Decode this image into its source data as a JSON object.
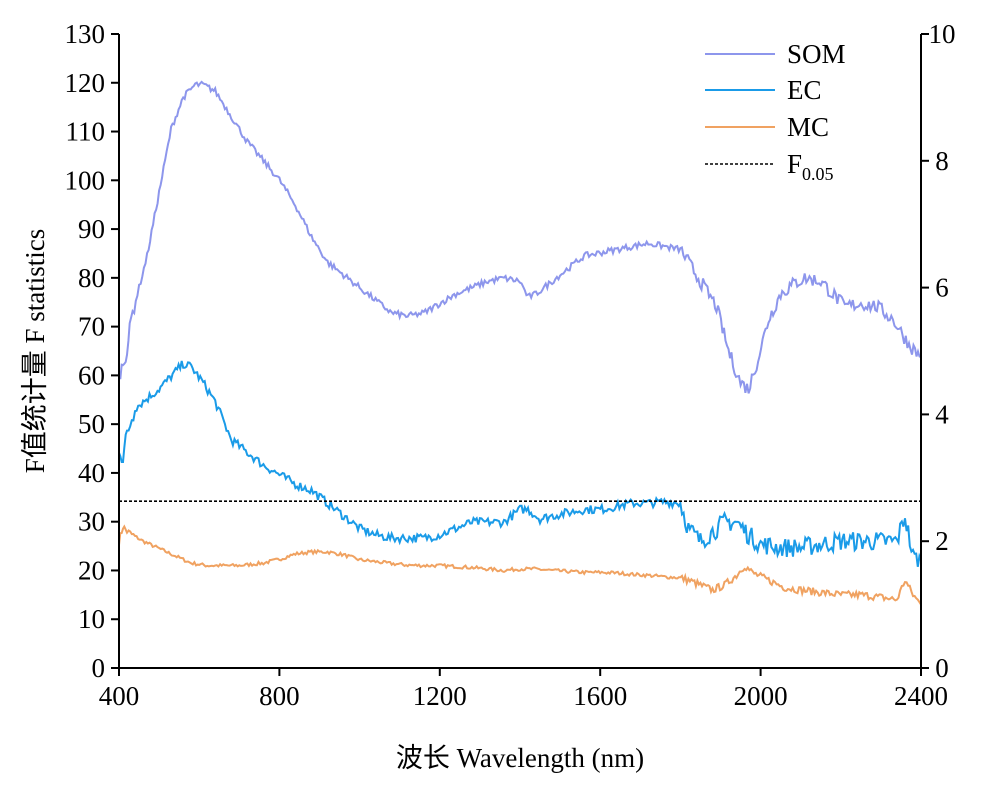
{
  "chart_data": {
    "type": "line",
    "title": "",
    "xlabel": "波长 Wavelength (nm)",
    "ylabel": "F值统计量 F statistics",
    "xlim": [
      400,
      2400
    ],
    "ylim": [
      0,
      130
    ],
    "y2lim": [
      0,
      10
    ],
    "xticks": [
      400,
      800,
      1200,
      1600,
      2000,
      2400
    ],
    "yticks": [
      0,
      10,
      20,
      30,
      40,
      50,
      60,
      70,
      80,
      90,
      100,
      110,
      120,
      130
    ],
    "y2ticks": [
      0,
      2,
      4,
      6,
      8,
      10
    ],
    "grid": false,
    "legend_position": "top-right",
    "series": [
      {
        "name": "SOM",
        "axis": "right",
        "color": "#8d96ec",
        "points": [
          [
            400,
            4.6
          ],
          [
            410,
            4.8
          ],
          [
            420,
            5.0
          ],
          [
            430,
            5.5
          ],
          [
            450,
            6.0
          ],
          [
            470,
            6.5
          ],
          [
            500,
            7.5
          ],
          [
            530,
            8.5
          ],
          [
            560,
            9.0
          ],
          [
            590,
            9.2
          ],
          [
            610,
            9.2
          ],
          [
            640,
            9.1
          ],
          [
            680,
            8.7
          ],
          [
            720,
            8.3
          ],
          [
            760,
            8.0
          ],
          [
            800,
            7.7
          ],
          [
            840,
            7.3
          ],
          [
            880,
            6.8
          ],
          [
            920,
            6.4
          ],
          [
            960,
            6.2
          ],
          [
            1000,
            6.0
          ],
          [
            1040,
            5.8
          ],
          [
            1080,
            5.6
          ],
          [
            1120,
            5.55
          ],
          [
            1160,
            5.6
          ],
          [
            1200,
            5.75
          ],
          [
            1240,
            5.9
          ],
          [
            1280,
            6.0
          ],
          [
            1320,
            6.1
          ],
          [
            1360,
            6.15
          ],
          [
            1400,
            6.1
          ],
          [
            1420,
            5.85
          ],
          [
            1440,
            5.9
          ],
          [
            1480,
            6.1
          ],
          [
            1520,
            6.3
          ],
          [
            1560,
            6.5
          ],
          [
            1600,
            6.55
          ],
          [
            1640,
            6.6
          ],
          [
            1680,
            6.65
          ],
          [
            1720,
            6.7
          ],
          [
            1760,
            6.65
          ],
          [
            1800,
            6.6
          ],
          [
            1830,
            6.3
          ],
          [
            1860,
            6.0
          ],
          [
            1890,
            5.7
          ],
          [
            1920,
            5.0
          ],
          [
            1950,
            4.5
          ],
          [
            1970,
            4.4
          ],
          [
            1990,
            4.8
          ],
          [
            2020,
            5.5
          ],
          [
            2050,
            5.9
          ],
          [
            2080,
            6.05
          ],
          [
            2110,
            6.15
          ],
          [
            2150,
            6.1
          ],
          [
            2180,
            5.9
          ],
          [
            2210,
            5.7
          ],
          [
            2250,
            5.75
          ],
          [
            2290,
            5.7
          ],
          [
            2330,
            5.5
          ],
          [
            2370,
            5.1
          ],
          [
            2400,
            4.9
          ]
        ]
      },
      {
        "name": "EC",
        "axis": "right",
        "color": "#1a9be8",
        "points": [
          [
            400,
            3.5
          ],
          [
            410,
            3.3
          ],
          [
            420,
            3.7
          ],
          [
            440,
            4.1
          ],
          [
            460,
            4.2
          ],
          [
            480,
            4.3
          ],
          [
            500,
            4.4
          ],
          [
            530,
            4.6
          ],
          [
            560,
            4.8
          ],
          [
            580,
            4.75
          ],
          [
            610,
            4.5
          ],
          [
            640,
            4.2
          ],
          [
            680,
            3.6
          ],
          [
            720,
            3.4
          ],
          [
            760,
            3.2
          ],
          [
            800,
            3.05
          ],
          [
            840,
            2.9
          ],
          [
            880,
            2.8
          ],
          [
            920,
            2.6
          ],
          [
            960,
            2.4
          ],
          [
            1000,
            2.2
          ],
          [
            1040,
            2.1
          ],
          [
            1080,
            2.05
          ],
          [
            1120,
            2.05
          ],
          [
            1160,
            2.05
          ],
          [
            1200,
            2.1
          ],
          [
            1240,
            2.2
          ],
          [
            1280,
            2.3
          ],
          [
            1320,
            2.3
          ],
          [
            1360,
            2.3
          ],
          [
            1400,
            2.5
          ],
          [
            1420,
            2.5
          ],
          [
            1450,
            2.35
          ],
          [
            1480,
            2.4
          ],
          [
            1520,
            2.45
          ],
          [
            1560,
            2.5
          ],
          [
            1600,
            2.5
          ],
          [
            1640,
            2.55
          ],
          [
            1680,
            2.6
          ],
          [
            1720,
            2.6
          ],
          [
            1760,
            2.62
          ],
          [
            1800,
            2.6
          ],
          [
            1820,
            2.2
          ],
          [
            1850,
            2.0
          ],
          [
            1880,
            2.15
          ],
          [
            1910,
            2.3
          ],
          [
            1940,
            2.3
          ],
          [
            1970,
            2.1
          ],
          [
            2000,
            1.95
          ],
          [
            2050,
            1.9
          ],
          [
            2100,
            1.9
          ],
          [
            2150,
            1.95
          ],
          [
            2200,
            2.0
          ],
          [
            2250,
            2.0
          ],
          [
            2300,
            2.0
          ],
          [
            2340,
            2.0
          ],
          [
            2360,
            2.4
          ],
          [
            2380,
            1.75
          ],
          [
            2400,
            1.7
          ]
        ]
      },
      {
        "name": "MC",
        "axis": "left",
        "color": "#f0a261",
        "points": [
          [
            400,
            26
          ],
          [
            410,
            29
          ],
          [
            420,
            28
          ],
          [
            440,
            27
          ],
          [
            460,
            26
          ],
          [
            500,
            24.5
          ],
          [
            540,
            23
          ],
          [
            580,
            21.5
          ],
          [
            620,
            21
          ],
          [
            660,
            21
          ],
          [
            700,
            21
          ],
          [
            760,
            21.5
          ],
          [
            800,
            22.3
          ],
          [
            840,
            23.4
          ],
          [
            880,
            23.8
          ],
          [
            920,
            23.8
          ],
          [
            960,
            23.2
          ],
          [
            1000,
            22.2
          ],
          [
            1040,
            21.8
          ],
          [
            1080,
            21.4
          ],
          [
            1120,
            21.1
          ],
          [
            1160,
            21.0
          ],
          [
            1200,
            21.0
          ],
          [
            1240,
            20.8
          ],
          [
            1280,
            20.6
          ],
          [
            1320,
            20.3
          ],
          [
            1360,
            20.0
          ],
          [
            1400,
            20.3
          ],
          [
            1440,
            20.3
          ],
          [
            1480,
            20.0
          ],
          [
            1520,
            19.8
          ],
          [
            1560,
            19.6
          ],
          [
            1600,
            19.6
          ],
          [
            1640,
            19.5
          ],
          [
            1680,
            19.2
          ],
          [
            1720,
            19.0
          ],
          [
            1760,
            18.7
          ],
          [
            1800,
            18.5
          ],
          [
            1820,
            18.0
          ],
          [
            1850,
            17.0
          ],
          [
            1880,
            16.0
          ],
          [
            1910,
            17.0
          ],
          [
            1940,
            19.0
          ],
          [
            1960,
            21.0
          ],
          [
            1980,
            19.5
          ],
          [
            2020,
            18.0
          ],
          [
            2060,
            16.5
          ],
          [
            2100,
            16.0
          ],
          [
            2150,
            15.5
          ],
          [
            2200,
            15.0
          ],
          [
            2250,
            15.0
          ],
          [
            2300,
            14.5
          ],
          [
            2340,
            14.0
          ],
          [
            2360,
            18.0
          ],
          [
            2380,
            15.0
          ],
          [
            2400,
            13.0
          ]
        ]
      },
      {
        "name": "F0.05",
        "axis": "left",
        "color": "#000000",
        "dashed": true,
        "points": [
          [
            400,
            34.2
          ],
          [
            2400,
            34.2
          ]
        ]
      }
    ],
    "legend": [
      {
        "series": "SOM",
        "label": "SOM"
      },
      {
        "series": "EC",
        "label": "EC"
      },
      {
        "series": "MC",
        "label": "MC"
      },
      {
        "series": "F0.05",
        "label_main": "F",
        "label_sub": "0.05"
      }
    ]
  }
}
